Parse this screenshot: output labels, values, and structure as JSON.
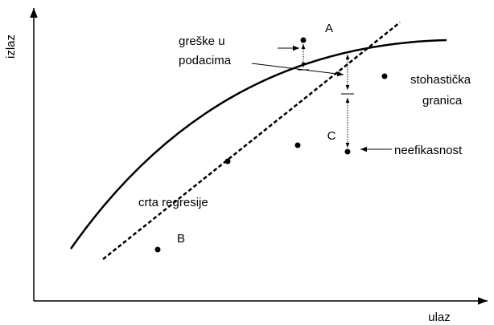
{
  "axes": {
    "y_label": "izlaz",
    "x_label": "ulaz"
  },
  "points": {
    "a": "A",
    "b": "B",
    "c": "C"
  },
  "annotations": {
    "data_error": [
      "greške u",
      "podacima"
    ],
    "frontier": [
      "stohastička",
      "granica"
    ],
    "inefficiency": "neefikasnost",
    "regression": "crta regresije"
  }
}
